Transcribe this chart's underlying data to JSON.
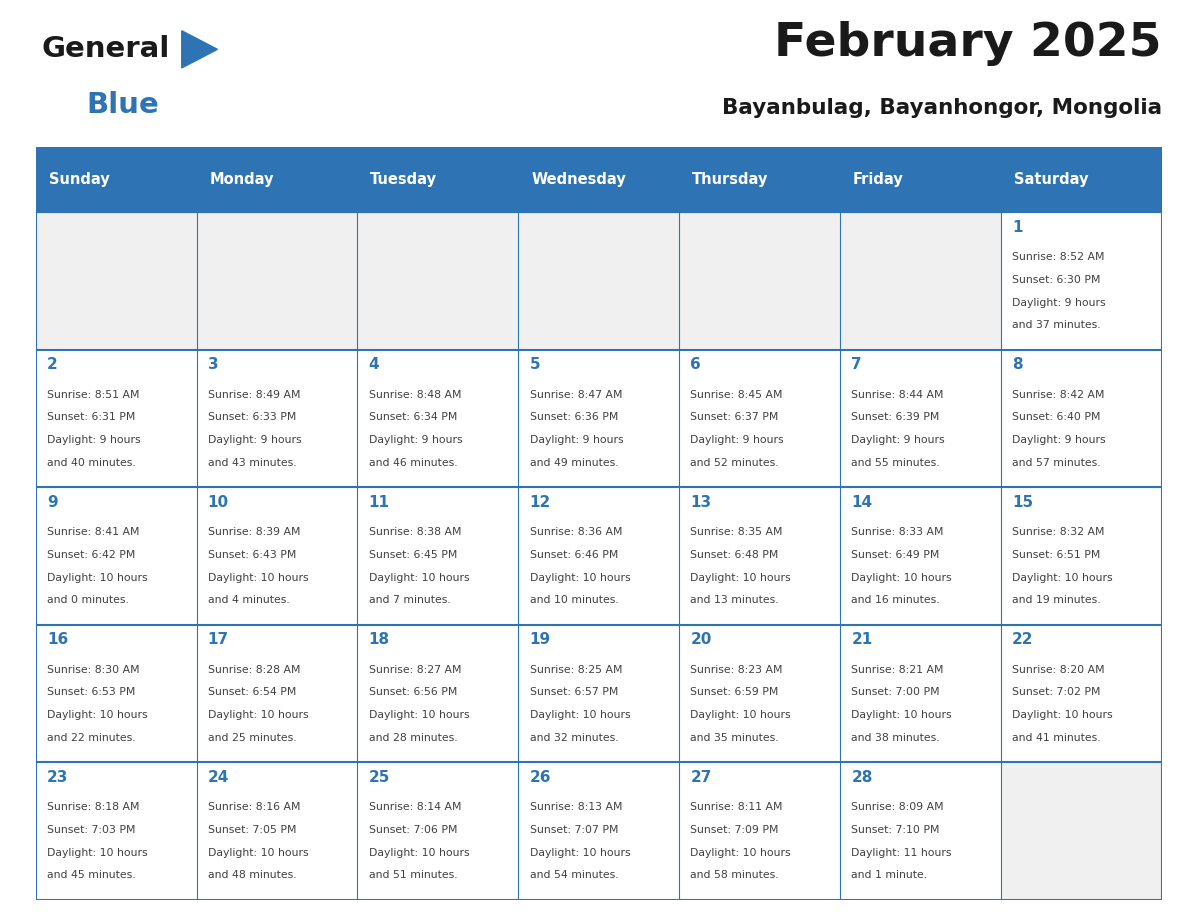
{
  "title": "February 2025",
  "subtitle": "Bayanbulag, Bayanhongor, Mongolia",
  "days_of_week": [
    "Sunday",
    "Monday",
    "Tuesday",
    "Wednesday",
    "Thursday",
    "Friday",
    "Saturday"
  ],
  "header_bg": "#2E74B5",
  "header_text": "#FFFFFF",
  "cell_bg_white": "#FFFFFF",
  "cell_bg_gray": "#F0F0F0",
  "border_color": "#2E74B5",
  "day_number_color": "#2E74B5",
  "info_text_color": "#404040",
  "title_color": "#1a1a1a",
  "subtitle_color": "#1a1a1a",
  "calendar_data": [
    [
      {
        "day": null,
        "info": ""
      },
      {
        "day": null,
        "info": ""
      },
      {
        "day": null,
        "info": ""
      },
      {
        "day": null,
        "info": ""
      },
      {
        "day": null,
        "info": ""
      },
      {
        "day": null,
        "info": ""
      },
      {
        "day": 1,
        "info": "Sunrise: 8:52 AM\nSunset: 6:30 PM\nDaylight: 9 hours\nand 37 minutes."
      }
    ],
    [
      {
        "day": 2,
        "info": "Sunrise: 8:51 AM\nSunset: 6:31 PM\nDaylight: 9 hours\nand 40 minutes."
      },
      {
        "day": 3,
        "info": "Sunrise: 8:49 AM\nSunset: 6:33 PM\nDaylight: 9 hours\nand 43 minutes."
      },
      {
        "day": 4,
        "info": "Sunrise: 8:48 AM\nSunset: 6:34 PM\nDaylight: 9 hours\nand 46 minutes."
      },
      {
        "day": 5,
        "info": "Sunrise: 8:47 AM\nSunset: 6:36 PM\nDaylight: 9 hours\nand 49 minutes."
      },
      {
        "day": 6,
        "info": "Sunrise: 8:45 AM\nSunset: 6:37 PM\nDaylight: 9 hours\nand 52 minutes."
      },
      {
        "day": 7,
        "info": "Sunrise: 8:44 AM\nSunset: 6:39 PM\nDaylight: 9 hours\nand 55 minutes."
      },
      {
        "day": 8,
        "info": "Sunrise: 8:42 AM\nSunset: 6:40 PM\nDaylight: 9 hours\nand 57 minutes."
      }
    ],
    [
      {
        "day": 9,
        "info": "Sunrise: 8:41 AM\nSunset: 6:42 PM\nDaylight: 10 hours\nand 0 minutes."
      },
      {
        "day": 10,
        "info": "Sunrise: 8:39 AM\nSunset: 6:43 PM\nDaylight: 10 hours\nand 4 minutes."
      },
      {
        "day": 11,
        "info": "Sunrise: 8:38 AM\nSunset: 6:45 PM\nDaylight: 10 hours\nand 7 minutes."
      },
      {
        "day": 12,
        "info": "Sunrise: 8:36 AM\nSunset: 6:46 PM\nDaylight: 10 hours\nand 10 minutes."
      },
      {
        "day": 13,
        "info": "Sunrise: 8:35 AM\nSunset: 6:48 PM\nDaylight: 10 hours\nand 13 minutes."
      },
      {
        "day": 14,
        "info": "Sunrise: 8:33 AM\nSunset: 6:49 PM\nDaylight: 10 hours\nand 16 minutes."
      },
      {
        "day": 15,
        "info": "Sunrise: 8:32 AM\nSunset: 6:51 PM\nDaylight: 10 hours\nand 19 minutes."
      }
    ],
    [
      {
        "day": 16,
        "info": "Sunrise: 8:30 AM\nSunset: 6:53 PM\nDaylight: 10 hours\nand 22 minutes."
      },
      {
        "day": 17,
        "info": "Sunrise: 8:28 AM\nSunset: 6:54 PM\nDaylight: 10 hours\nand 25 minutes."
      },
      {
        "day": 18,
        "info": "Sunrise: 8:27 AM\nSunset: 6:56 PM\nDaylight: 10 hours\nand 28 minutes."
      },
      {
        "day": 19,
        "info": "Sunrise: 8:25 AM\nSunset: 6:57 PM\nDaylight: 10 hours\nand 32 minutes."
      },
      {
        "day": 20,
        "info": "Sunrise: 8:23 AM\nSunset: 6:59 PM\nDaylight: 10 hours\nand 35 minutes."
      },
      {
        "day": 21,
        "info": "Sunrise: 8:21 AM\nSunset: 7:00 PM\nDaylight: 10 hours\nand 38 minutes."
      },
      {
        "day": 22,
        "info": "Sunrise: 8:20 AM\nSunset: 7:02 PM\nDaylight: 10 hours\nand 41 minutes."
      }
    ],
    [
      {
        "day": 23,
        "info": "Sunrise: 8:18 AM\nSunset: 7:03 PM\nDaylight: 10 hours\nand 45 minutes."
      },
      {
        "day": 24,
        "info": "Sunrise: 8:16 AM\nSunset: 7:05 PM\nDaylight: 10 hours\nand 48 minutes."
      },
      {
        "day": 25,
        "info": "Sunrise: 8:14 AM\nSunset: 7:06 PM\nDaylight: 10 hours\nand 51 minutes."
      },
      {
        "day": 26,
        "info": "Sunrise: 8:13 AM\nSunset: 7:07 PM\nDaylight: 10 hours\nand 54 minutes."
      },
      {
        "day": 27,
        "info": "Sunrise: 8:11 AM\nSunset: 7:09 PM\nDaylight: 10 hours\nand 58 minutes."
      },
      {
        "day": 28,
        "info": "Sunrise: 8:09 AM\nSunset: 7:10 PM\nDaylight: 11 hours\nand 1 minute."
      },
      {
        "day": null,
        "info": ""
      }
    ]
  ],
  "logo_text_general": "General",
  "logo_text_blue": "Blue",
  "logo_color_general": "#1a1a1a",
  "logo_color_blue": "#2E74B5",
  "logo_triangle_color": "#2E74B5"
}
